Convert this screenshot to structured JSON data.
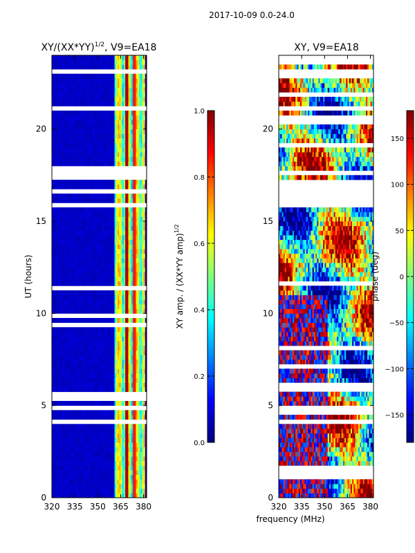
{
  "figure_title": "2017-10-09 0.0-24.0",
  "shared_xlabel": "frequency (MHz)",
  "chart_data": [
    {
      "type": "heatmap",
      "title_main": "XY/(XX*YY)",
      "title_exp": "1/2",
      "title_suffix": ", V9=EA18",
      "ylabel": "UT (hours)",
      "xlim": [
        320,
        382
      ],
      "ylim": [
        0,
        24
      ],
      "xticks": [
        320,
        335,
        350,
        365,
        380
      ],
      "yticks": [
        0,
        5,
        10,
        15,
        20
      ],
      "colorbar": {
        "label_main": "XY amp. / (XX*YY amp)",
        "label_exp": "1/2",
        "range": [
          0.0,
          1.0
        ],
        "ticks": [
          "0.0",
          "0.2",
          "0.4",
          "0.6",
          "0.8",
          "1.0"
        ],
        "tick_values": [
          0.0,
          0.2,
          0.4,
          0.6,
          0.8,
          1.0
        ],
        "colormap": "jet"
      },
      "description": "Normalized XY amplitude vs frequency and UT; low (~0.05) background with bright RFI channels near 361-380 MHz"
    },
    {
      "type": "heatmap",
      "title_main": "XY",
      "title_suffix": ", V9=EA18",
      "ylabel": "",
      "xlim": [
        320,
        382
      ],
      "ylim": [
        0,
        24
      ],
      "xticks": [
        320,
        335,
        350,
        365,
        380
      ],
      "yticks": [
        0,
        5,
        10,
        15,
        20
      ],
      "colorbar": {
        "label_main": "phase (deg)",
        "range": [
          -180,
          180
        ],
        "ticks": [
          "150",
          "100",
          "50",
          "0",
          "−50",
          "−100",
          "−150"
        ],
        "tick_values": [
          150,
          100,
          50,
          0,
          -50,
          -100,
          -150
        ],
        "colormap": "jet"
      },
      "description": "XY phase vs frequency and UT; noisy phase with smooth structures, data gaps across many time rows"
    }
  ],
  "colors": {
    "jet_stops": [
      "#00007f",
      "#0000ff",
      "#007fff",
      "#00ffff",
      "#7fff7f",
      "#ffff00",
      "#ff7f00",
      "#ff0000",
      "#7f0000"
    ],
    "axes": "#000000",
    "background": "#ffffff"
  }
}
